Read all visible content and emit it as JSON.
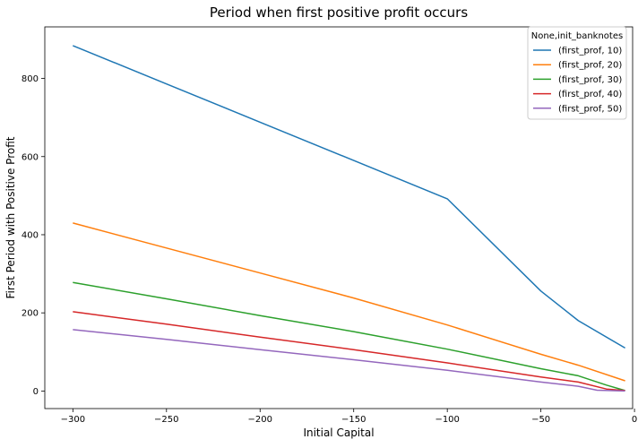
{
  "chart_data": {
    "type": "line",
    "title": "Period when first positive profit occurs",
    "xlabel": "Initial Capital",
    "ylabel": "First Period with Positive Profit",
    "xlim": [
      -315,
      -1
    ],
    "ylim": [
      -45,
      932
    ],
    "xticks": [
      -300,
      -250,
      -200,
      -150,
      -100,
      -50,
      0
    ],
    "yticks": [
      0,
      200,
      400,
      600,
      800
    ],
    "grid": false,
    "legend": {
      "title": "None,init_banknotes",
      "placement": "top-right"
    },
    "series": [
      {
        "name": "(first_prof, 10)",
        "color": "#1f77b4",
        "points": [
          [
            -300,
            884
          ],
          [
            -250,
            786
          ],
          [
            -200,
            688
          ],
          [
            -150,
            590
          ],
          [
            -100,
            492
          ],
          [
            -50,
            256
          ],
          [
            -30,
            180
          ],
          [
            -5,
            110
          ]
        ]
      },
      {
        "name": "(first_prof, 20)",
        "color": "#ff7f0e",
        "points": [
          [
            -300,
            430
          ],
          [
            -250,
            366
          ],
          [
            -200,
            302
          ],
          [
            -150,
            238
          ],
          [
            -100,
            169
          ],
          [
            -50,
            94
          ],
          [
            -30,
            66
          ],
          [
            -5,
            26
          ]
        ]
      },
      {
        "name": "(first_prof, 30)",
        "color": "#2ca02c",
        "points": [
          [
            -300,
            278
          ],
          [
            -250,
            236
          ],
          [
            -200,
            193
          ],
          [
            -150,
            152
          ],
          [
            -100,
            107
          ],
          [
            -50,
            57
          ],
          [
            -30,
            39
          ],
          [
            -15,
            15
          ],
          [
            -5,
            1
          ]
        ]
      },
      {
        "name": "(first_prof, 40)",
        "color": "#d62728",
        "points": [
          [
            -300,
            203
          ],
          [
            -250,
            171
          ],
          [
            -200,
            138
          ],
          [
            -150,
            106
          ],
          [
            -100,
            72
          ],
          [
            -50,
            36
          ],
          [
            -30,
            23
          ],
          [
            -15,
            5
          ],
          [
            -5,
            1
          ]
        ]
      },
      {
        "name": "(first_prof, 50)",
        "color": "#9467bd",
        "points": [
          [
            -300,
            157
          ],
          [
            -250,
            132
          ],
          [
            -200,
            106
          ],
          [
            -150,
            80
          ],
          [
            -100,
            53
          ],
          [
            -50,
            23
          ],
          [
            -30,
            12
          ],
          [
            -20,
            2
          ],
          [
            -5,
            0
          ]
        ]
      }
    ]
  }
}
